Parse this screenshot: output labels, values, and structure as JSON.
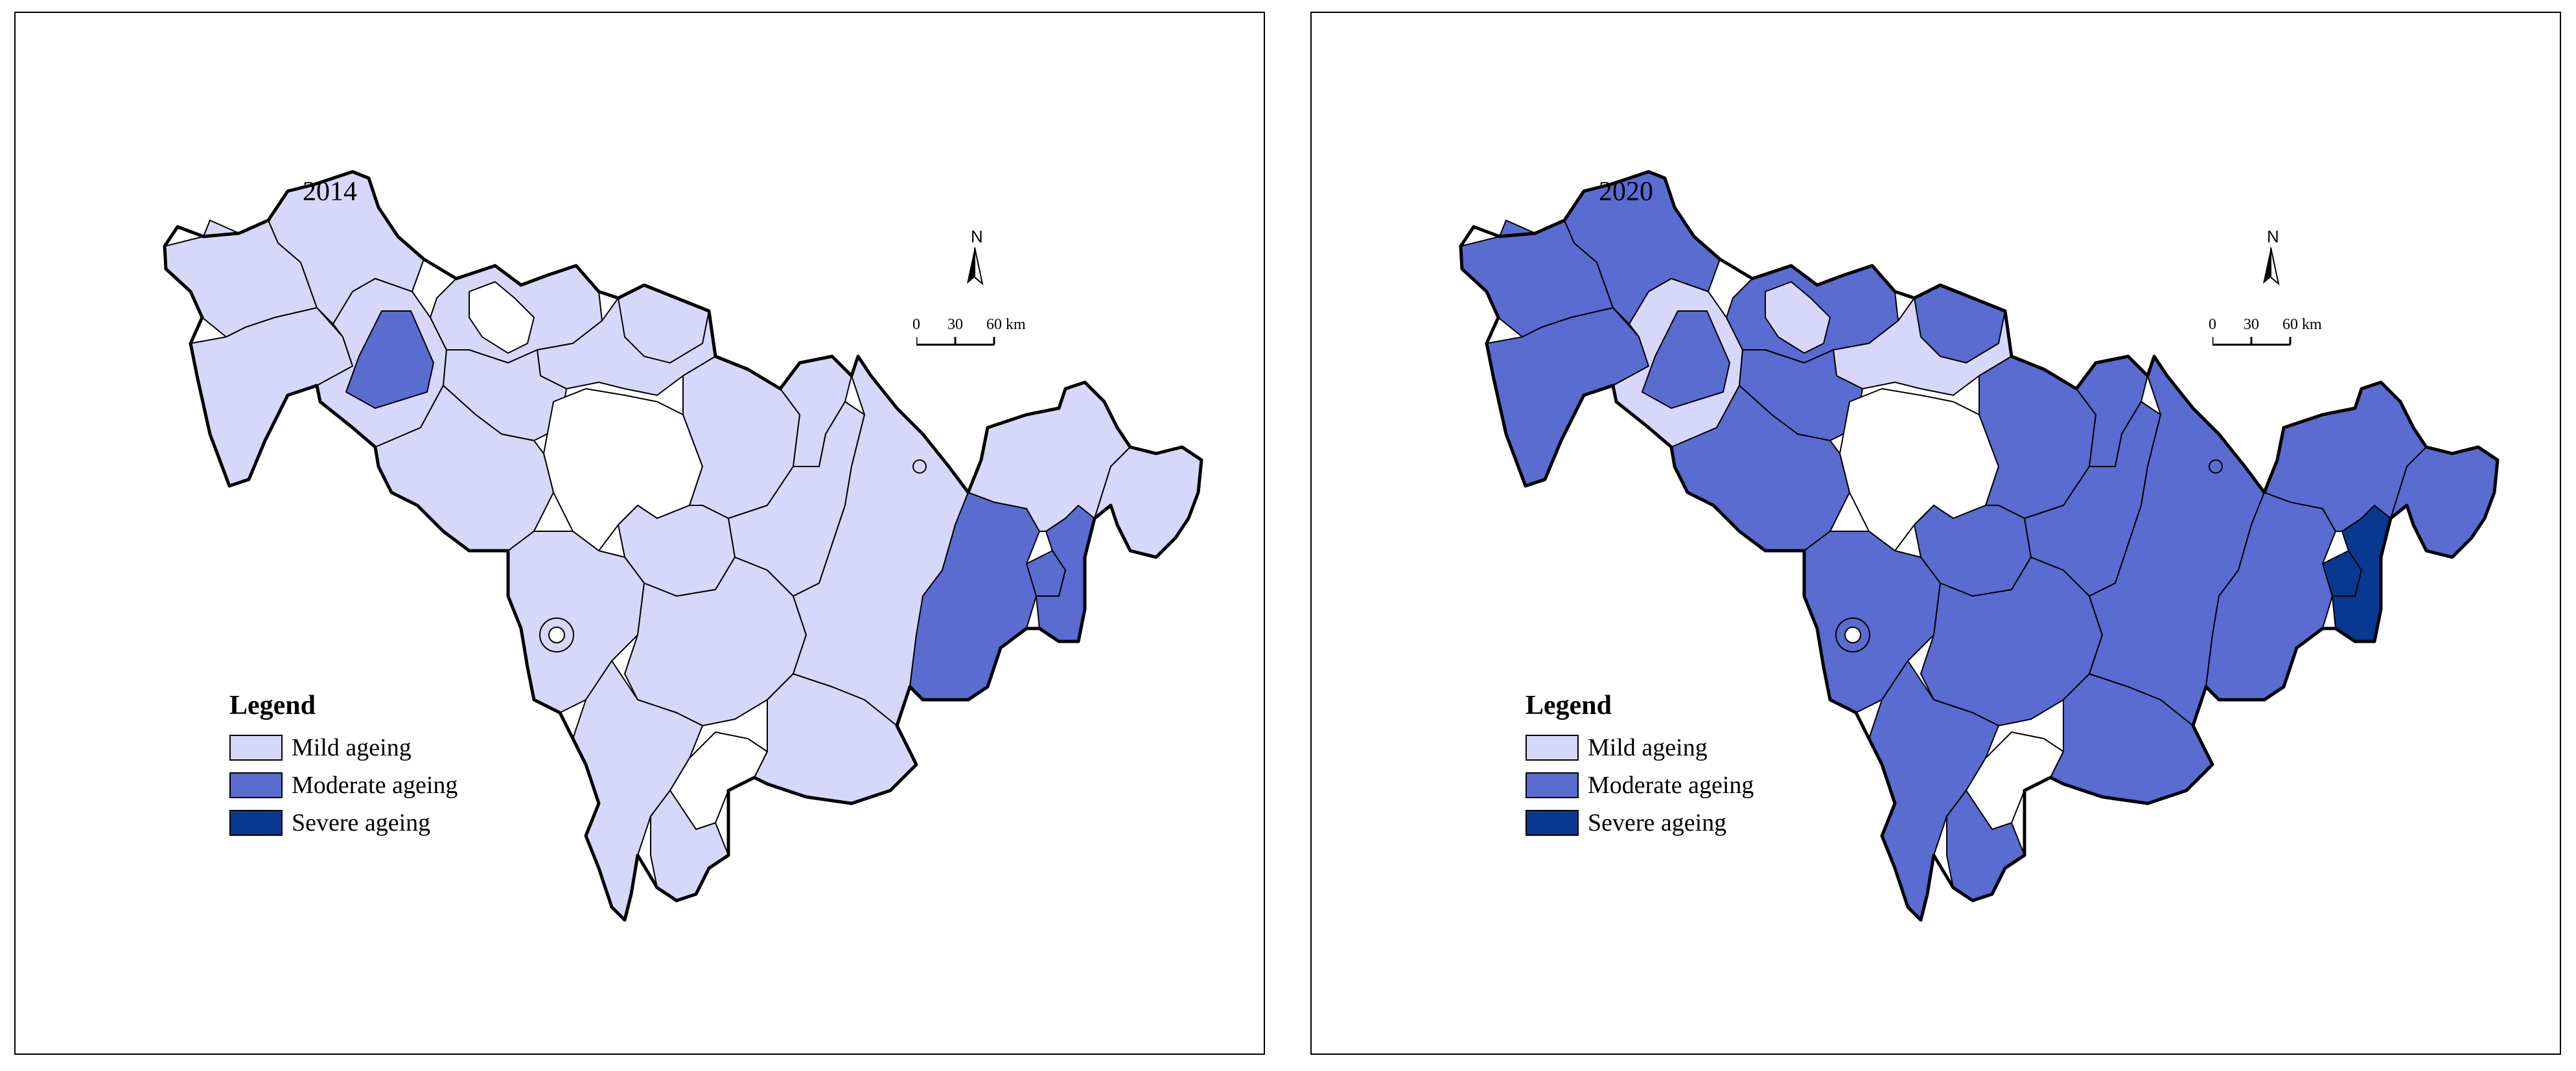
{
  "colors": {
    "mild": "#d7d7fa",
    "moderate": "#5a6ccf",
    "severe": "#08388f",
    "none": "#ffffff",
    "border": "#000000"
  },
  "legend": {
    "title": "Legend",
    "items": [
      {
        "label": "Mild ageing",
        "color": "#d7d7fa"
      },
      {
        "label": "Moderate ageing",
        "color": "#5a6ccf"
      },
      {
        "label": "Severe ageing",
        "color": "#08388f"
      }
    ]
  },
  "north_label": "N",
  "scale_bar": {
    "labels": [
      "0",
      "30",
      "60 km"
    ]
  },
  "maps": [
    {
      "year": "2014",
      "regions": {
        "W1": "mild",
        "W2": "mild",
        "W3": "mild",
        "W4": "mild",
        "W5": "moderate",
        "N1": "mild",
        "N2": "none",
        "N3": "mild",
        "N4": "mild",
        "C1": "mild",
        "C2": "none",
        "C3": "mild",
        "C4": "mild",
        "C5": "mild",
        "S1": "mild",
        "S2": "mild",
        "S3": "mild",
        "S4": "none",
        "S5": "mild",
        "S6": "mild",
        "E1": "mild",
        "E2": "mild",
        "E3": "mild",
        "E4": "moderate",
        "E5": "moderate",
        "E6": "moderate",
        "K1": "mild",
        "K2": "mild"
      }
    },
    {
      "year": "2020",
      "regions": {
        "W1": "moderate",
        "W2": "moderate",
        "W3": "moderate",
        "W4": "mild",
        "W5": "moderate",
        "N1": "moderate",
        "N2": "mild",
        "N3": "mild",
        "N4": "moderate",
        "C1": "moderate",
        "C2": "none",
        "C3": "moderate",
        "C4": "moderate",
        "C5": "moderate",
        "S1": "moderate",
        "S2": "moderate",
        "S3": "moderate",
        "S4": "none",
        "S5": "moderate",
        "S6": "moderate",
        "E1": "moderate",
        "E2": "moderate",
        "E3": "moderate",
        "E4": "moderate",
        "E5": "severe",
        "E6": "severe",
        "K1": "moderate",
        "K2": "moderate"
      }
    }
  ]
}
